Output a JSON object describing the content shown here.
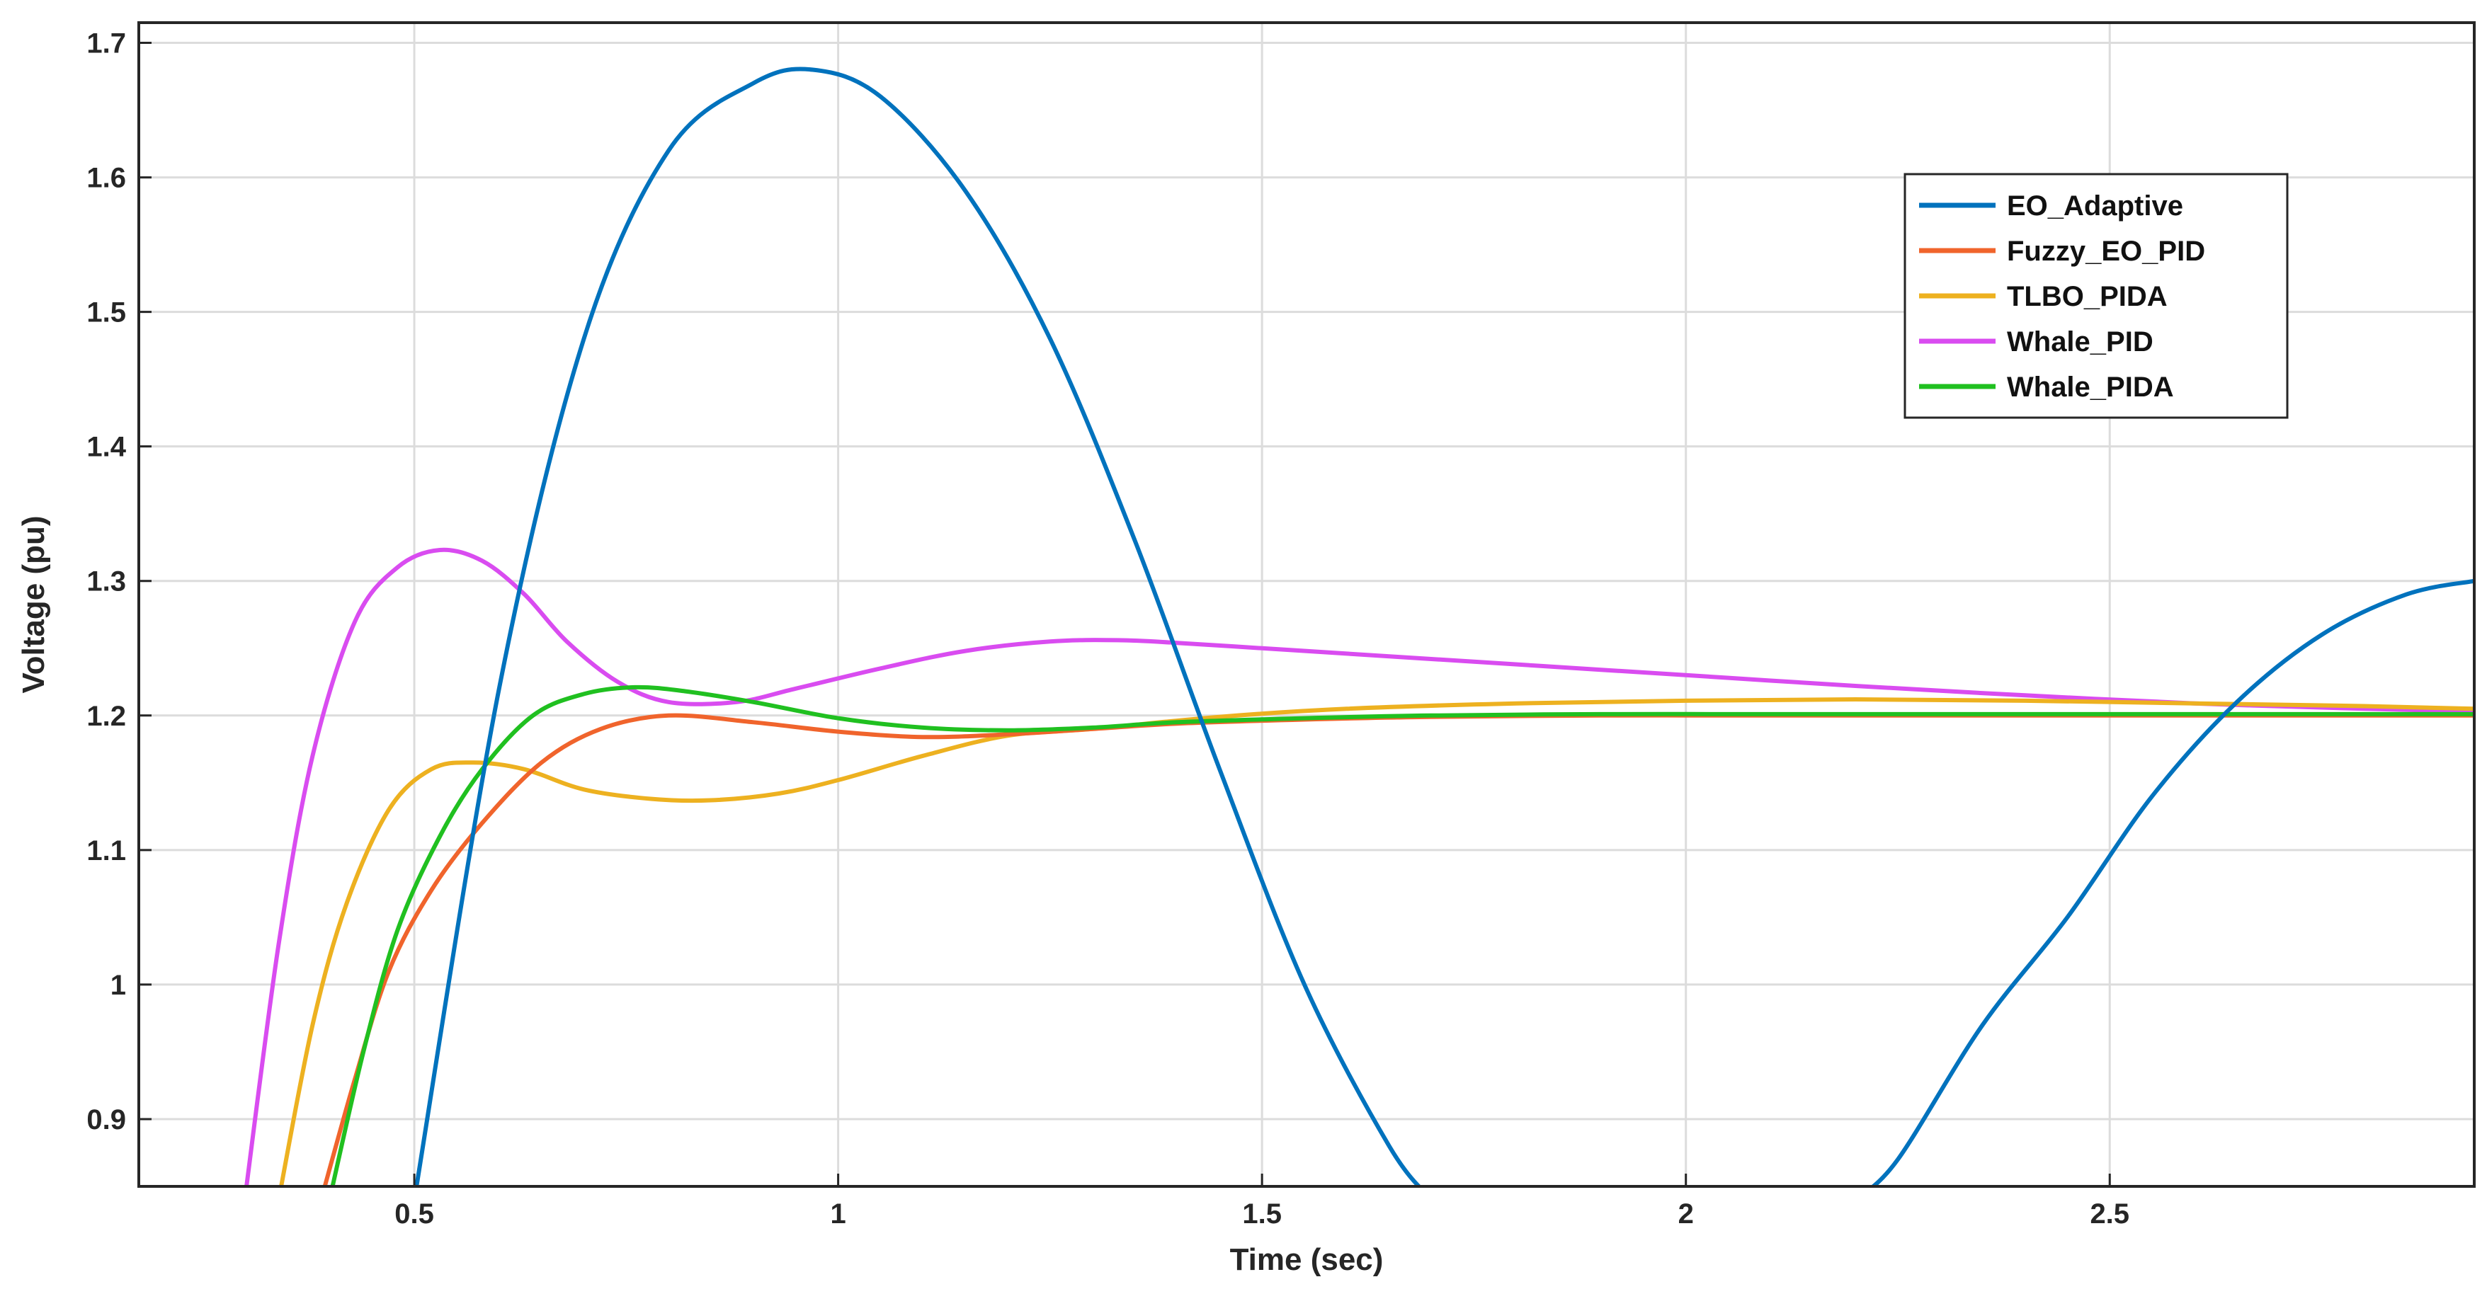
{
  "chart_data": {
    "type": "line",
    "xlabel": "Time (sec)",
    "ylabel": "Voltage (pu)",
    "xlim": [
      0.175,
      2.93
    ],
    "ylim": [
      0.85,
      1.715
    ],
    "xticks": [
      {
        "value": 0.5,
        "label": "0.5"
      },
      {
        "value": 1.0,
        "label": "1"
      },
      {
        "value": 1.5,
        "label": "1.5"
      },
      {
        "value": 2.0,
        "label": "2"
      },
      {
        "value": 2.5,
        "label": "2.5"
      }
    ],
    "yticks": [
      {
        "value": 0.9,
        "label": "0.9"
      },
      {
        "value": 1.0,
        "label": "1"
      },
      {
        "value": 1.1,
        "label": "1.1"
      },
      {
        "value": 1.2,
        "label": "1.2"
      },
      {
        "value": 1.3,
        "label": "1.3"
      },
      {
        "value": 1.4,
        "label": "1.4"
      },
      {
        "value": 1.5,
        "label": "1.5"
      },
      {
        "value": 1.6,
        "label": "1.6"
      },
      {
        "value": 1.7,
        "label": "1.7"
      }
    ],
    "grid": true,
    "legend_position": "top-right",
    "series": [
      {
        "name": "EO_Adaptive",
        "color": "#0072BD",
        "x": [
          0.5,
          0.6,
          0.7,
          0.8,
          0.9,
          0.97,
          1.05,
          1.15,
          1.25,
          1.35,
          1.45,
          1.55,
          1.65,
          1.7,
          2.2,
          2.25,
          2.35,
          2.45,
          2.55,
          2.65,
          2.75,
          2.85,
          2.93
        ],
        "y": [
          0.84,
          1.22,
          1.48,
          1.62,
          1.67,
          1.68,
          1.66,
          1.59,
          1.48,
          1.33,
          1.16,
          1.0,
          0.88,
          0.84,
          0.84,
          0.87,
          0.97,
          1.05,
          1.14,
          1.21,
          1.26,
          1.29,
          1.3
        ]
      },
      {
        "name": "Fuzzy_EO_PID",
        "color": "#F0642C",
        "x": [
          0.39,
          0.43,
          0.47,
          0.52,
          0.58,
          0.65,
          0.72,
          0.8,
          0.9,
          1.0,
          1.1,
          1.2,
          1.3,
          1.4,
          1.55,
          1.7,
          1.9,
          2.1,
          2.3,
          2.5,
          2.7,
          2.93
        ],
        "y": [
          0.84,
          0.93,
          1.01,
          1.07,
          1.12,
          1.165,
          1.19,
          1.2,
          1.195,
          1.188,
          1.184,
          1.186,
          1.19,
          1.194,
          1.197,
          1.199,
          1.2,
          1.2,
          1.2,
          1.2,
          1.2,
          1.2
        ]
      },
      {
        "name": "TLBO_PIDA",
        "color": "#EDB120",
        "x": [
          0.34,
          0.38,
          0.42,
          0.47,
          0.52,
          0.57,
          0.63,
          0.7,
          0.78,
          0.85,
          0.93,
          1.0,
          1.1,
          1.2,
          1.3,
          1.45,
          1.6,
          1.8,
          2.0,
          2.2,
          2.4,
          2.6,
          2.8,
          2.93
        ],
        "y": [
          0.84,
          0.97,
          1.06,
          1.13,
          1.16,
          1.165,
          1.16,
          1.145,
          1.138,
          1.137,
          1.142,
          1.152,
          1.17,
          1.185,
          1.19,
          1.199,
          1.205,
          1.209,
          1.211,
          1.212,
          1.211,
          1.209,
          1.207,
          1.205
        ]
      },
      {
        "name": "Whale_PID",
        "color": "#D94CF0",
        "x": [
          0.3,
          0.34,
          0.38,
          0.43,
          0.48,
          0.53,
          0.58,
          0.63,
          0.68,
          0.74,
          0.8,
          0.88,
          0.95,
          1.05,
          1.15,
          1.25,
          1.33,
          1.4,
          1.5,
          1.6,
          1.75,
          1.9,
          2.05,
          2.2,
          2.4,
          2.6,
          2.8,
          2.93
        ],
        "y": [
          0.84,
          1.03,
          1.17,
          1.27,
          1.31,
          1.323,
          1.315,
          1.29,
          1.255,
          1.225,
          1.21,
          1.21,
          1.22,
          1.235,
          1.248,
          1.255,
          1.256,
          1.254,
          1.25,
          1.246,
          1.24,
          1.234,
          1.228,
          1.222,
          1.215,
          1.209,
          1.205,
          1.203
        ]
      },
      {
        "name": "Whale_PIDA",
        "color": "#20C020",
        "x": [
          0.4,
          0.44,
          0.48,
          0.53,
          0.58,
          0.64,
          0.7,
          0.76,
          0.82,
          0.9,
          1.0,
          1.1,
          1.2,
          1.3,
          1.4,
          1.55,
          1.7,
          1.9,
          2.1,
          2.3,
          2.5,
          2.7,
          2.93
        ],
        "y": [
          0.84,
          0.95,
          1.04,
          1.11,
          1.16,
          1.2,
          1.216,
          1.221,
          1.218,
          1.21,
          1.198,
          1.191,
          1.189,
          1.191,
          1.195,
          1.198,
          1.2,
          1.201,
          1.201,
          1.201,
          1.201,
          1.201,
          1.201
        ]
      }
    ]
  }
}
